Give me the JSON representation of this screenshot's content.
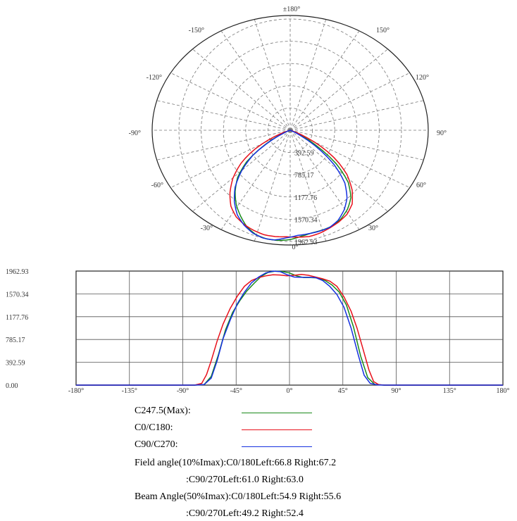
{
  "chart_data": [
    {
      "type": "polar",
      "angle_labels": [
        "±180°",
        "150°",
        "120°",
        "90°",
        "60°",
        "30°",
        "0°",
        "-30°",
        "-60°",
        "-90°",
        "-120°",
        "-150°"
      ],
      "radial_ticks": [
        "392.59",
        "785.17",
        "1177.76",
        "1570.34",
        "1962.93"
      ],
      "rlim": [
        0,
        1962.93
      ],
      "grid": true
    },
    {
      "type": "line",
      "xlim": [
        -180,
        180
      ],
      "ylim": [
        0,
        1962.93
      ],
      "x_ticks": [
        "-180°",
        "-135°",
        "-90°",
        "-45°",
        "0°",
        "45°",
        "90°",
        "135°",
        "180°"
      ],
      "y_ticks": [
        "0.00",
        "392.59",
        "785.17",
        "1177.76",
        "1570.34",
        "1962.93"
      ],
      "grid": true,
      "series": [
        {
          "name": "C247.5(Max):",
          "color": "#1a8a1a",
          "points": [
            [
              -180,
              0
            ],
            [
              -80,
              0
            ],
            [
              -72,
              10
            ],
            [
              -66,
              150
            ],
            [
              -60,
              520
            ],
            [
              -54,
              950
            ],
            [
              -48,
              1250
            ],
            [
              -42,
              1450
            ],
            [
              -36,
              1620
            ],
            [
              -30,
              1750
            ],
            [
              -24,
              1870
            ],
            [
              -18,
              1940
            ],
            [
              -12,
              1962
            ],
            [
              -6,
              1955
            ],
            [
              0,
              1930
            ],
            [
              6,
              1880
            ],
            [
              12,
              1850
            ],
            [
              18,
              1850
            ],
            [
              24,
              1845
            ],
            [
              30,
              1800
            ],
            [
              36,
              1720
            ],
            [
              42,
              1600
            ],
            [
              48,
              1380
            ],
            [
              54,
              1000
            ],
            [
              60,
              500
            ],
            [
              66,
              130
            ],
            [
              72,
              10
            ],
            [
              80,
              0
            ],
            [
              180,
              0
            ]
          ]
        },
        {
          "name": "C0/C180:",
          "color": "#e8101a",
          "points": [
            [
              -180,
              0
            ],
            [
              -80,
              0
            ],
            [
              -74,
              30
            ],
            [
              -70,
              180
            ],
            [
              -66,
              420
            ],
            [
              -61,
              760
            ],
            [
              -56,
              1050
            ],
            [
              -50,
              1320
            ],
            [
              -44,
              1530
            ],
            [
              -38,
              1700
            ],
            [
              -32,
              1800
            ],
            [
              -26,
              1850
            ],
            [
              -20,
              1880
            ],
            [
              -14,
              1900
            ],
            [
              -8,
              1895
            ],
            [
              -2,
              1880
            ],
            [
              4,
              1890
            ],
            [
              10,
              1905
            ],
            [
              16,
              1890
            ],
            [
              22,
              1860
            ],
            [
              28,
              1830
            ],
            [
              34,
              1790
            ],
            [
              40,
              1700
            ],
            [
              46,
              1520
            ],
            [
              52,
              1270
            ],
            [
              57,
              980
            ],
            [
              62,
              620
            ],
            [
              67,
              260
            ],
            [
              71,
              60
            ],
            [
              75,
              10
            ],
            [
              80,
              0
            ],
            [
              180,
              0
            ]
          ]
        },
        {
          "name": "C90/C270:",
          "color": "#1530e0",
          "points": [
            [
              -180,
              0
            ],
            [
              -80,
              0
            ],
            [
              -72,
              8
            ],
            [
              -66,
              120
            ],
            [
              -61,
              420
            ],
            [
              -56,
              800
            ],
            [
              -50,
              1120
            ],
            [
              -44,
              1400
            ],
            [
              -38,
              1600
            ],
            [
              -32,
              1760
            ],
            [
              -26,
              1860
            ],
            [
              -20,
              1930
            ],
            [
              -14,
              1962
            ],
            [
              -8,
              1955
            ],
            [
              -2,
              1900
            ],
            [
              4,
              1860
            ],
            [
              10,
              1855
            ],
            [
              16,
              1855
            ],
            [
              22,
              1850
            ],
            [
              28,
              1800
            ],
            [
              34,
              1700
            ],
            [
              40,
              1560
            ],
            [
              46,
              1340
            ],
            [
              52,
              980
            ],
            [
              58,
              520
            ],
            [
              63,
              170
            ],
            [
              68,
              30
            ],
            [
              74,
              5
            ],
            [
              80,
              0
            ],
            [
              180,
              0
            ]
          ]
        }
      ]
    }
  ],
  "legend": [
    {
      "label": "C247.5(Max):",
      "color": "#1a8a1a"
    },
    {
      "label": "C0/C180:",
      "color": "#e8101a"
    },
    {
      "label": "C90/C270:",
      "color": "#1530e0"
    }
  ],
  "info": {
    "field_line1": "Field angle(10%Imax):C0/180Left:66.8 Right:67.2",
    "field_line2": ":C90/270Left:61.0 Right:63.0",
    "beam_line1": "Beam Angle(50%Imax):C0/180Left:54.9 Right:55.6",
    "beam_line2": ":C90/270Left:49.2 Right:52.4"
  }
}
